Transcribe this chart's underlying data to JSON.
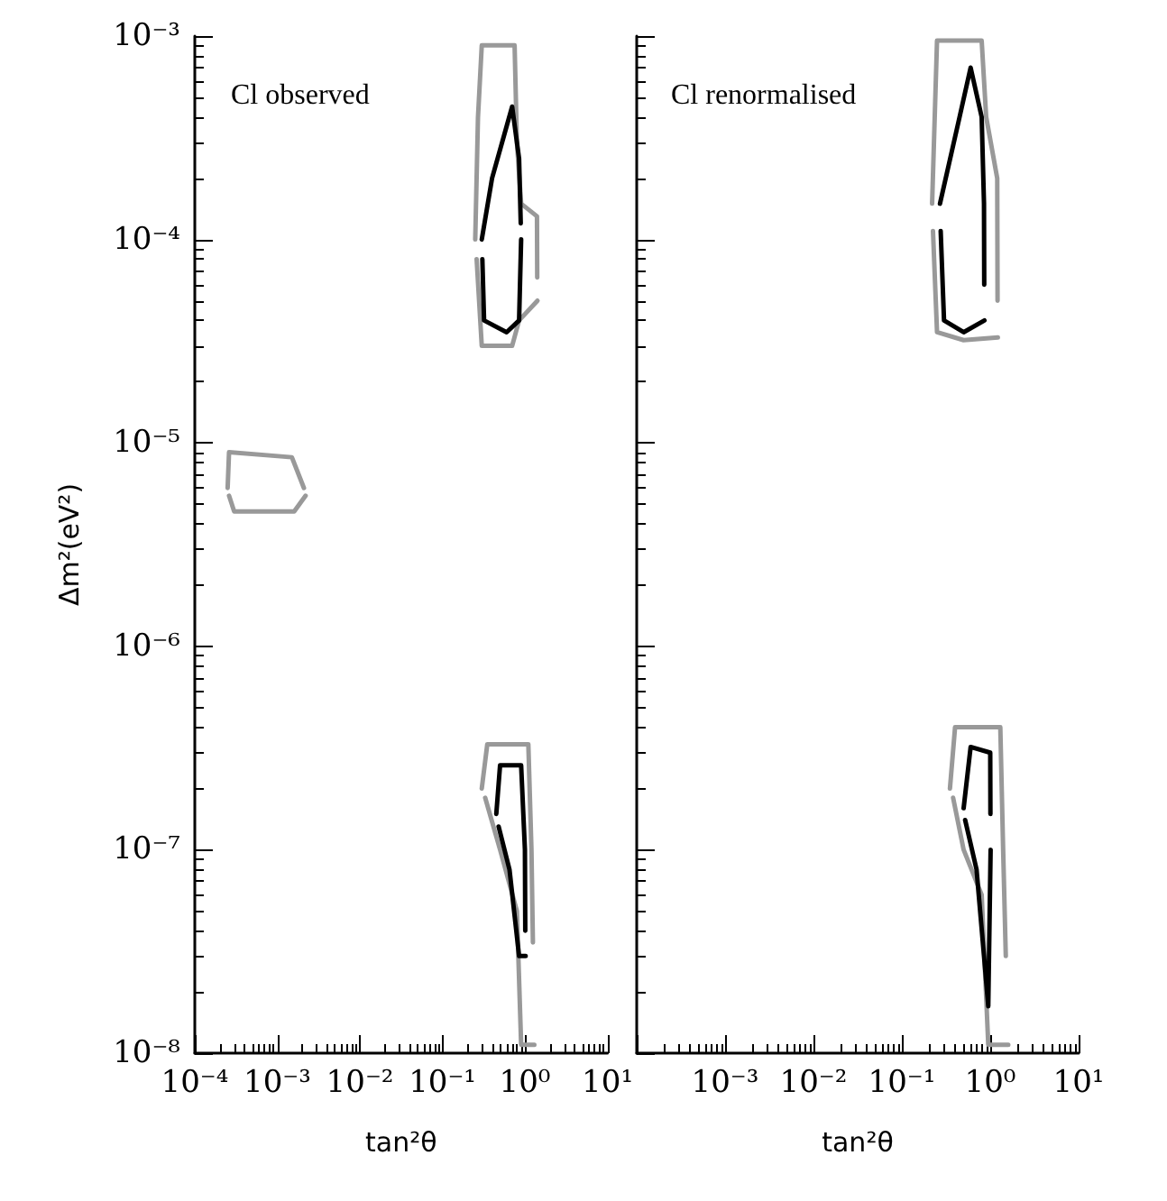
{
  "chart_data": [
    {
      "type": "line",
      "xlabel": "tan²θ",
      "ylabel": "Δm²(eV²)",
      "annotations": [
        "Cl observed"
      ],
      "log": "xy",
      "grid": false,
      "marker": "none",
      "line_style": "solid",
      "xlim": [
        0.0001,
        10
      ],
      "ylim": [
        1e-08,
        0.001
      ],
      "xticks": [
        {
          "value": 0.0001,
          "label": "10⁻⁴"
        },
        {
          "value": 0.001,
          "label": "10⁻³"
        },
        {
          "value": 0.01,
          "label": "10⁻²"
        },
        {
          "value": 0.1,
          "label": "10⁻¹"
        },
        {
          "value": 1,
          "label": "10⁰"
        },
        {
          "value": 10,
          "label": "10¹"
        }
      ],
      "yticks": [
        {
          "value": 1e-08,
          "label": "10⁻⁸"
        },
        {
          "value": 1e-07,
          "label": "10⁻⁷"
        },
        {
          "value": 1e-06,
          "label": "10⁻⁶"
        },
        {
          "value": 1e-05,
          "label": "10⁻⁵"
        },
        {
          "value": 0.0001,
          "label": "10⁻⁴"
        },
        {
          "value": 0.001,
          "label": "10⁻³"
        }
      ],
      "series": [
        {
          "color": "#999999",
          "x": [
            0.00025,
            0.00026,
            0.0015,
            0.0021
          ],
          "values": [
            6e-06,
            9e-06,
            8.5e-06,
            6e-06
          ]
        },
        {
          "color": "#999999",
          "x": [
            0.00026,
            0.0003,
            0.0016,
            0.0022
          ],
          "values": [
            5.5e-06,
            4.6e-06,
            4.6e-06,
            5.5e-06
          ]
        },
        {
          "color": "#999999",
          "x": [
            0.25,
            0.27,
            0.3,
            0.75,
            0.8,
            0.9,
            1.4,
            1.41
          ],
          "values": [
            0.0001,
            0.0004,
            0.0009,
            0.0009,
            0.0003,
            0.00015,
            0.00013,
            6.5e-05
          ]
        },
        {
          "color": "#999999",
          "x": [
            0.26,
            0.3,
            0.7,
            0.85,
            1.42
          ],
          "values": [
            8e-05,
            3e-05,
            3e-05,
            4e-05,
            5e-05
          ]
        },
        {
          "color": "#000000",
          "x": [
            0.3,
            0.4,
            0.7,
            0.85,
            0.89
          ],
          "values": [
            0.0001,
            0.0002,
            0.00045,
            0.00025,
            0.00012
          ]
        },
        {
          "color": "#000000",
          "x": [
            0.305,
            0.32,
            0.6,
            0.85,
            0.9
          ],
          "values": [
            8e-05,
            4e-05,
            3.5e-05,
            4e-05,
            0.0001
          ]
        },
        {
          "color": "#999999",
          "x": [
            0.3,
            0.35,
            1.1,
            1.2,
            1.25
          ],
          "values": [
            2e-07,
            3.3e-07,
            3.3e-07,
            1e-07,
            3.5e-08
          ]
        },
        {
          "color": "#999999",
          "x": [
            0.33,
            0.5,
            0.8,
            0.9,
            1.3
          ],
          "values": [
            1.8e-07,
            1e-07,
            5e-08,
            1.1e-08,
            1.1e-08
          ]
        },
        {
          "color": "#000000",
          "x": [
            0.45,
            0.5,
            0.9,
            1.0,
            1.01
          ],
          "values": [
            1.5e-07,
            2.6e-07,
            2.6e-07,
            1e-07,
            4e-08
          ]
        },
        {
          "color": "#000000",
          "x": [
            0.48,
            0.65,
            0.85,
            1.02
          ],
          "values": [
            1.3e-07,
            8e-08,
            3e-08,
            3e-08
          ]
        }
      ]
    },
    {
      "type": "line",
      "xlabel": "tan²θ",
      "annotations": [
        "Cl renormalised"
      ],
      "log": "xy",
      "grid": false,
      "marker": "none",
      "line_style": "solid",
      "tick_labels": "x",
      "xlim": [
        0.0001,
        10
      ],
      "ylim": [
        1e-08,
        0.001
      ],
      "xticks": [
        {
          "value": 0.0001,
          "label": null
        },
        {
          "value": 0.001,
          "label": "10⁻³"
        },
        {
          "value": 0.01,
          "label": "10⁻²"
        },
        {
          "value": 0.1,
          "label": "10⁻¹"
        },
        {
          "value": 1,
          "label": "10⁰"
        },
        {
          "value": 10,
          "label": "10¹"
        }
      ],
      "yticks": [
        1e-08,
        1e-07,
        1e-06,
        1e-05,
        0.0001,
        0.001
      ],
      "series": [
        {
          "color": "#999999",
          "x": [
            0.22,
            0.25,
            0.8,
            0.9,
            1.2,
            1.21
          ],
          "values": [
            0.00015,
            0.00095,
            0.00095,
            0.0004,
            0.0002,
            5e-05
          ]
        },
        {
          "color": "#999999",
          "x": [
            0.225,
            0.25,
            0.5,
            1.22
          ],
          "values": [
            0.00011,
            3.5e-05,
            3.2e-05,
            3.3e-05
          ]
        },
        {
          "color": "#000000",
          "x": [
            0.27,
            0.45,
            0.6,
            0.8,
            0.85,
            0.855
          ],
          "values": [
            0.00015,
            0.0004,
            0.0007,
            0.0004,
            0.00015,
            6e-05
          ]
        },
        {
          "color": "#000000",
          "x": [
            0.275,
            0.3,
            0.5,
            0.86
          ],
          "values": [
            0.00011,
            4e-05,
            3.5e-05,
            4e-05
          ]
        },
        {
          "color": "#999999",
          "x": [
            0.35,
            0.4,
            1.3,
            1.4,
            1.5
          ],
          "values": [
            2e-07,
            4e-07,
            4e-07,
            1e-07,
            3e-08
          ]
        },
        {
          "color": "#999999",
          "x": [
            0.38,
            0.5,
            0.8,
            0.95,
            1.6
          ],
          "values": [
            1.8e-07,
            1e-07,
            6e-08,
            1.1e-08,
            1.1e-08
          ]
        },
        {
          "color": "#000000",
          "x": [
            0.5,
            0.6,
            1.0,
            1.005
          ],
          "values": [
            1.6e-07,
            3.2e-07,
            3e-07,
            1.5e-07
          ]
        },
        {
          "color": "#000000",
          "x": [
            0.52,
            0.7,
            0.85,
            0.95,
            1.01
          ],
          "values": [
            1.4e-07,
            8e-08,
            3e-08,
            1.7e-08,
            1e-07
          ]
        }
      ]
    }
  ]
}
